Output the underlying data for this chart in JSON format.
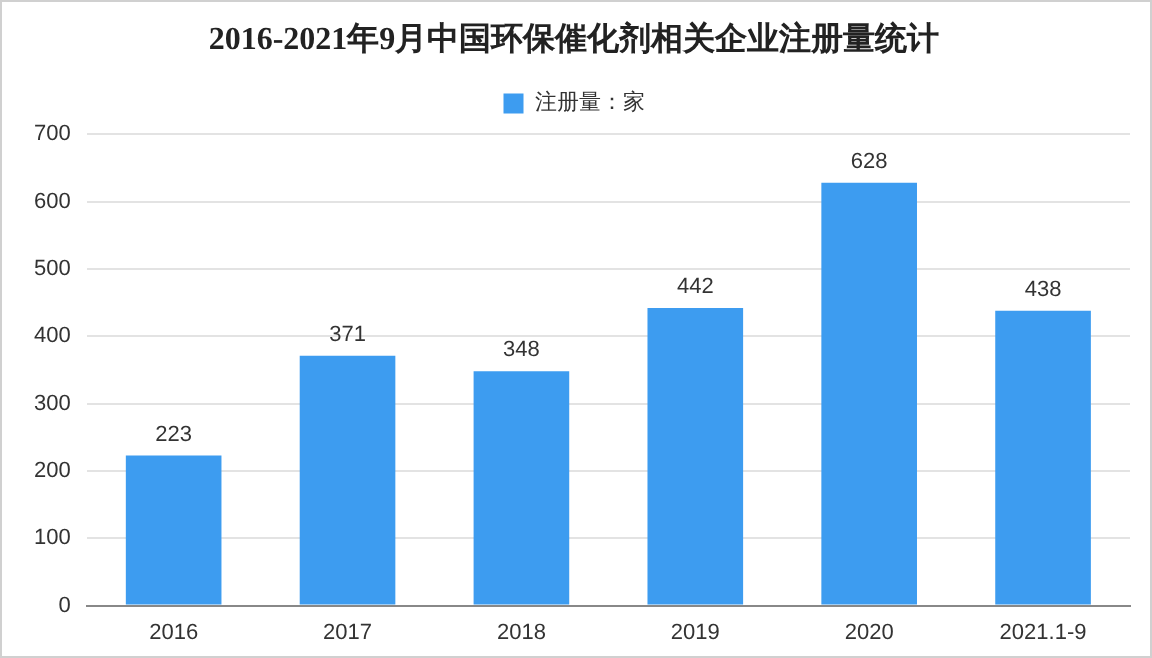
{
  "chart_data": {
    "type": "bar",
    "title": "2016-2021年9月中国环保催化剂相关企业注册量统计",
    "categories": [
      "2016",
      "2017",
      "2018",
      "2019",
      "2020",
      "2021.1-9"
    ],
    "series": [
      {
        "name": "注册量：家",
        "color": "#3d9cf0",
        "values": [
          223,
          371,
          348,
          442,
          628,
          438
        ]
      }
    ],
    "ylim": [
      0,
      700
    ],
    "yticks": [
      0,
      100,
      200,
      300,
      400,
      500,
      600,
      700
    ],
    "grid": "y",
    "legend": "top",
    "data_labels": true
  }
}
